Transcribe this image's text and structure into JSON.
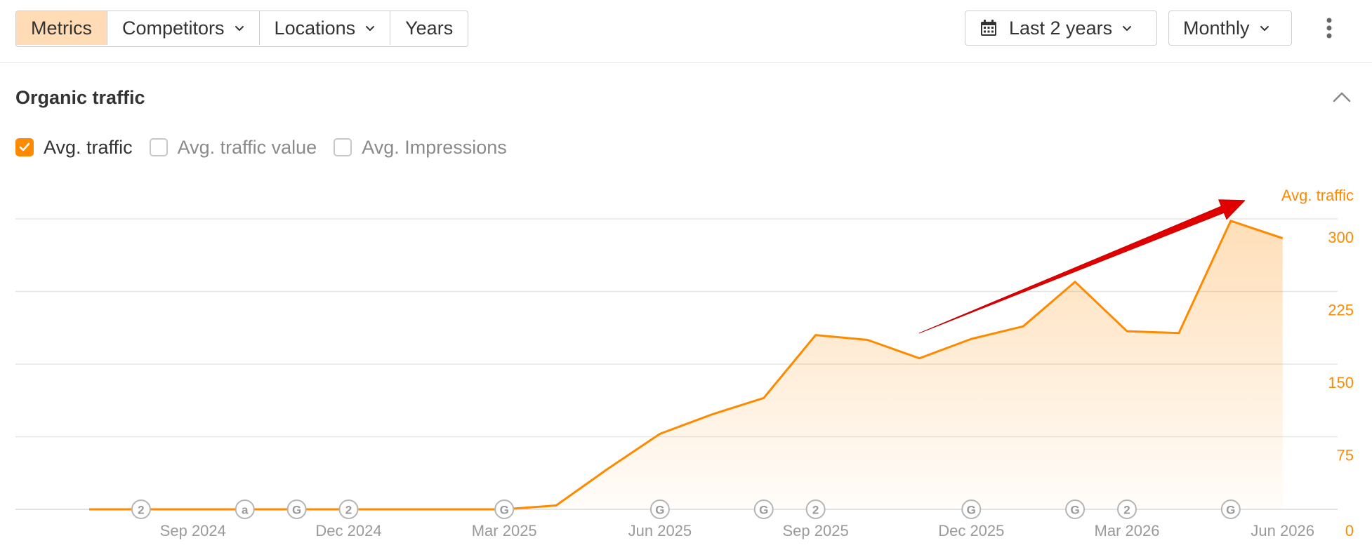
{
  "toolbar": {
    "tabs": [
      {
        "label": "Metrics",
        "active": true,
        "dropdown": false
      },
      {
        "label": "Competitors",
        "active": false,
        "dropdown": true
      },
      {
        "label": "Locations",
        "active": false,
        "dropdown": true
      },
      {
        "label": "Years",
        "active": false,
        "dropdown": false
      }
    ],
    "date_range": "Last 2 years",
    "granularity": "Monthly",
    "icons": {
      "date": "calendar-icon",
      "dropdown": "chevron-down-icon",
      "more": "kebab-menu-icon"
    }
  },
  "section": {
    "title": "Organic traffic",
    "collapse_icon": "chevron-up-icon"
  },
  "metrics": [
    {
      "label": "Avg. traffic",
      "checked": true
    },
    {
      "label": "Avg. traffic value",
      "checked": false
    },
    {
      "label": "Avg. Impressions",
      "checked": false
    }
  ],
  "colors": {
    "accent": "#ff8a00",
    "active_tab": "#ffdcb5",
    "arrow": "#e00000",
    "grid": "#e6e6e6",
    "axis_text": "#9a9a9a"
  },
  "chart_data": {
    "type": "area",
    "ylabel": "Avg. traffic",
    "ylim": [
      0,
      300
    ],
    "yticks": [
      0,
      75,
      150,
      225,
      300
    ],
    "x_ticks": [
      "Sep 2024",
      "Dec 2024",
      "Mar 2025",
      "Jun 2025",
      "Sep 2025",
      "Dec 2025",
      "Mar 2026",
      "Jun 2026"
    ],
    "x_tick_dates": [
      "2024-09",
      "2024-12",
      "2025-03",
      "2025-06",
      "2025-09",
      "2025-12",
      "2026-03",
      "2026-06"
    ],
    "series": [
      {
        "x": [
          "2024-07",
          "2024-08",
          "2024-09",
          "2024-10",
          "2024-11",
          "2024-12",
          "2025-01",
          "2025-02",
          "2025-03",
          "2025-04",
          "2025-05",
          "2025-06",
          "2025-07",
          "2025-08",
          "2025-09",
          "2025-10",
          "2025-11",
          "2025-12",
          "2026-01",
          "2026-02",
          "2026-03",
          "2026-04",
          "2026-05",
          "2026-06"
        ],
        "values": [
          0,
          0,
          0,
          0,
          0,
          0,
          0,
          0,
          0,
          4,
          42,
          78,
          98,
          115,
          180,
          175,
          156,
          176,
          189,
          235,
          184,
          182,
          298,
          280
        ]
      }
    ],
    "annotations": [
      {
        "date": "2024-08",
        "marker": "2"
      },
      {
        "date": "2024-10",
        "marker": "a"
      },
      {
        "date": "2024-11",
        "marker": "G"
      },
      {
        "date": "2024-12",
        "marker": "2"
      },
      {
        "date": "2025-03",
        "marker": "G"
      },
      {
        "date": "2025-06",
        "marker": "G"
      },
      {
        "date": "2025-08",
        "marker": "G"
      },
      {
        "date": "2025-09",
        "marker": "2"
      },
      {
        "date": "2025-12",
        "marker": "G"
      },
      {
        "date": "2026-02",
        "marker": "G"
      },
      {
        "date": "2026-03",
        "marker": "2"
      },
      {
        "date": "2026-05",
        "marker": "G"
      }
    ],
    "trend_arrow": {
      "from": {
        "date": "2025-11",
        "value": 182
      },
      "to": {
        "date": "2026-05",
        "value": 319
      }
    },
    "grid": true,
    "y_axis_position": "right"
  }
}
